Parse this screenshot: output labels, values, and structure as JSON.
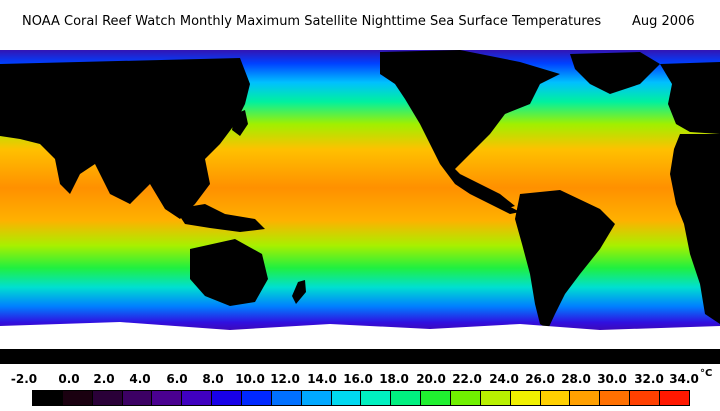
{
  "header": {
    "title": "NOAA Coral Reef Watch Monthly Maximum Satellite Nighttime Sea Surface Temperatures",
    "date": "Aug 2006"
  },
  "legend": {
    "ticks": [
      "-2.0",
      "0.0",
      "2.0",
      "4.0",
      "6.0",
      "8.0",
      "10.0",
      "12.0",
      "14.0",
      "16.0",
      "18.0",
      "20.0",
      "22.0",
      "24.0",
      "26.0",
      "28.0",
      "30.0",
      "32.0",
      "34.0"
    ],
    "unit": "°C",
    "colors": [
      "#000000",
      "#1a0010",
      "#2a0038",
      "#3c0064",
      "#4a0090",
      "#4000c0",
      "#1800e8",
      "#0028ff",
      "#0070ff",
      "#00a8ff",
      "#00d8f0",
      "#00f0c0",
      "#00f080",
      "#20f030",
      "#70f000",
      "#b8f000",
      "#f0f000",
      "#ffd000",
      "#ffa000",
      "#ff7000",
      "#ff4000",
      "#ff1800"
    ]
  },
  "colors": {
    "land": "#000000",
    "ice": "#ffffff",
    "ocean_warm": "#ffa000",
    "ocean_hot": "#ff7800",
    "ocean_mid": "#8ef000",
    "ocean_cool": "#00e8c0",
    "ocean_cold": "#0050ff",
    "ocean_polar": "#4a0090"
  }
}
